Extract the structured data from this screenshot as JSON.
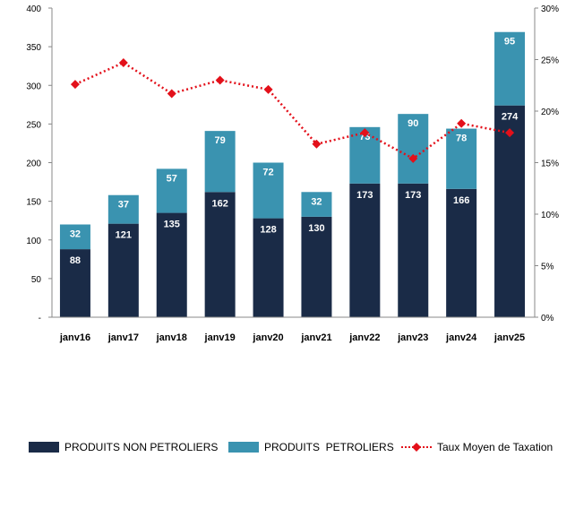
{
  "chart_data": {
    "type": "bar",
    "stacked": true,
    "categories": [
      "janv16",
      "janv17",
      "janv18",
      "janv19",
      "janv20",
      "janv21",
      "janv22",
      "janv23",
      "janv24",
      "janv25"
    ],
    "series": [
      {
        "name": "PRODUITS NON PETROLIERS",
        "values": [
          88,
          121,
          135,
          162,
          128,
          130,
          173,
          173,
          166,
          274
        ],
        "color": "#1a2b47"
      },
      {
        "name": "PRODUITS  PETROLIERS",
        "values": [
          32,
          37,
          57,
          79,
          72,
          32,
          73,
          90,
          78,
          95
        ],
        "color": "#3a93b0"
      }
    ],
    "line_series": {
      "name": "Taux Moyen de Taxation",
      "axis": "right",
      "values": [
        22.6,
        24.7,
        21.7,
        23.0,
        22.1,
        16.8,
        17.9,
        15.4,
        18.8,
        17.9
      ],
      "color": "#e3101a"
    },
    "left_axis": {
      "ylim": [
        0,
        400
      ],
      "ticks": [
        "-",
        "50",
        "100",
        "150",
        "200",
        "250",
        "300",
        "350",
        "400"
      ]
    },
    "right_axis": {
      "ylim": [
        0,
        30
      ],
      "ticks": [
        "0%",
        "5%",
        "10%",
        "15%",
        "20%",
        "25%",
        "30%"
      ]
    },
    "legend_position": "bottom",
    "grid": false
  }
}
